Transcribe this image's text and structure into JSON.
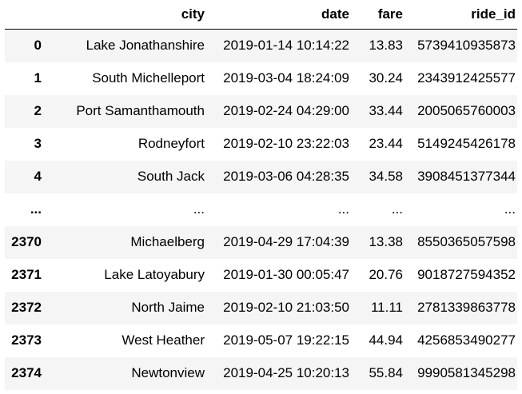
{
  "table": {
    "columns": [
      "",
      "city",
      "date",
      "fare",
      "ride_id"
    ],
    "rows": [
      {
        "index": "0",
        "city": "Lake Jonathanshire",
        "date": "2019-01-14 10:14:22",
        "fare": "13.83",
        "ride_id": "5739410935873"
      },
      {
        "index": "1",
        "city": "South Michelleport",
        "date": "2019-03-04 18:24:09",
        "fare": "30.24",
        "ride_id": "2343912425577"
      },
      {
        "index": "2",
        "city": "Port Samanthamouth",
        "date": "2019-02-24 04:29:00",
        "fare": "33.44",
        "ride_id": "2005065760003"
      },
      {
        "index": "3",
        "city": "Rodneyfort",
        "date": "2019-02-10 23:22:03",
        "fare": "23.44",
        "ride_id": "5149245426178"
      },
      {
        "index": "4",
        "city": "South Jack",
        "date": "2019-03-06 04:28:35",
        "fare": "34.58",
        "ride_id": "3908451377344"
      },
      {
        "index": "...",
        "city": "...",
        "date": "...",
        "fare": "...",
        "ride_id": "..."
      },
      {
        "index": "2370",
        "city": "Michaelberg",
        "date": "2019-04-29 17:04:39",
        "fare": "13.38",
        "ride_id": "8550365057598"
      },
      {
        "index": "2371",
        "city": "Lake Latoyabury",
        "date": "2019-01-30 00:05:47",
        "fare": "20.76",
        "ride_id": "9018727594352"
      },
      {
        "index": "2372",
        "city": "North Jaime",
        "date": "2019-02-10 21:03:50",
        "fare": "11.11",
        "ride_id": "2781339863778"
      },
      {
        "index": "2373",
        "city": "West Heather",
        "date": "2019-05-07 19:22:15",
        "fare": "44.94",
        "ride_id": "4256853490277"
      },
      {
        "index": "2374",
        "city": "Newtonview",
        "date": "2019-04-25 10:20:13",
        "fare": "55.84",
        "ride_id": "9990581345298"
      }
    ]
  }
}
